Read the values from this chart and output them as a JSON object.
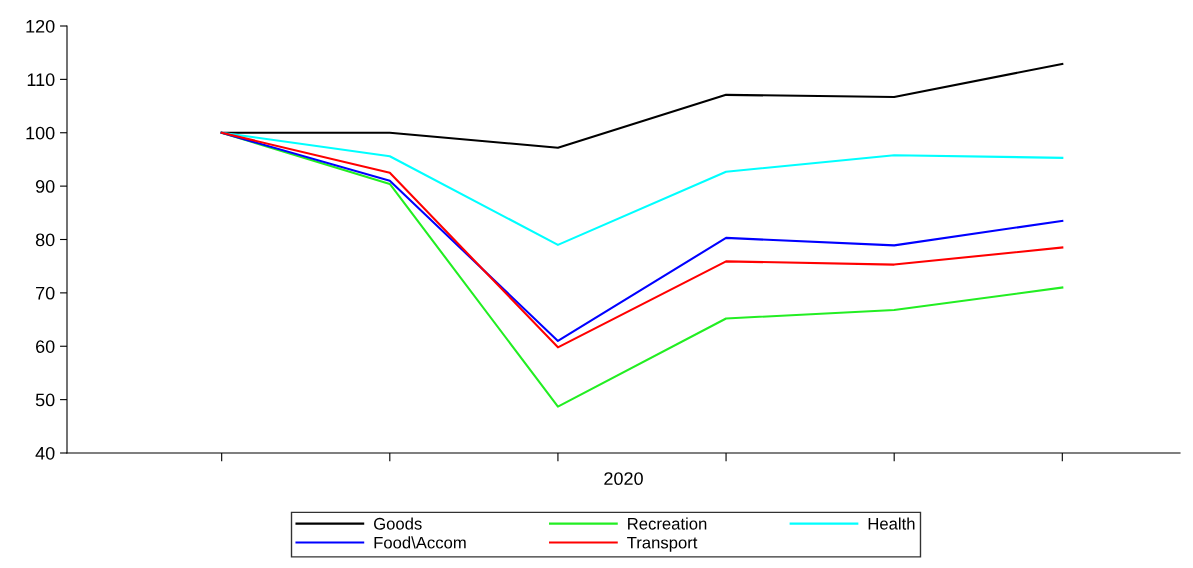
{
  "chart_data": {
    "type": "line",
    "xlabel": "2020",
    "categories": [
      null,
      null,
      null,
      null,
      null,
      null
    ],
    "series": [
      {
        "name": "Goods",
        "color": "#000000",
        "values": [
          100,
          100,
          97.2,
          107.1,
          106.7,
          112.9
        ]
      },
      {
        "name": "Recreation",
        "color": "#22ee22",
        "values": [
          100,
          90.4,
          48.7,
          65.2,
          66.8,
          71
        ]
      },
      {
        "name": "Health",
        "color": "#00ffff",
        "values": [
          100,
          95.6,
          79,
          92.7,
          95.8,
          95.3
        ]
      },
      {
        "name": "Food\\Accom",
        "color": "#0000ff",
        "values": [
          100,
          91,
          61,
          80.3,
          78.9,
          83.5
        ]
      },
      {
        "name": "Transport",
        "color": "#ff0000",
        "values": [
          100,
          92.5,
          59.8,
          75.9,
          75.3,
          78.5
        ]
      }
    ],
    "ylim": [
      40,
      120
    ],
    "yticks": [
      40,
      50,
      60,
      70,
      80,
      90,
      100,
      110,
      120
    ],
    "grid": false,
    "legend": "bottom",
    "marker": "none",
    "line_style": "solid"
  }
}
